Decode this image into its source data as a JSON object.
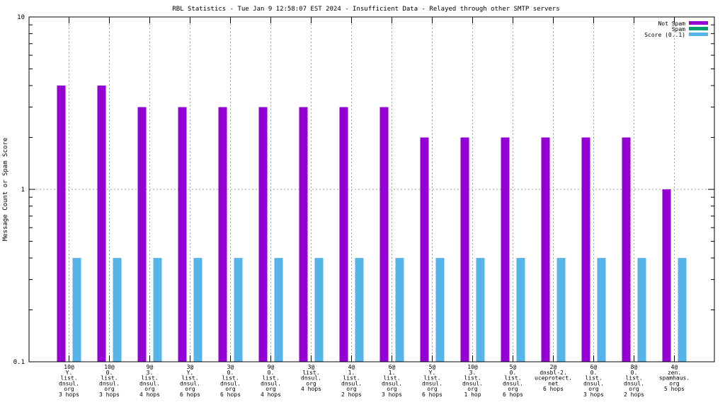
{
  "chart_data": {
    "type": "bar",
    "title": "RBL Statistics - Tue Jan  9 12:58:07 EST 2024 - Insufficient Data - Relayed through other SMTP servers",
    "ylabel": "Message Count or Spam Score",
    "xlabel": "",
    "yscale": "log",
    "ylim": [
      0.1,
      10
    ],
    "yticks": [
      "0.1",
      "1",
      "10"
    ],
    "grid": true,
    "legend_position": "top-right",
    "categories": [
      [
        "10@",
        "Y.",
        "list.",
        "dnsul.",
        "org",
        "3 hops"
      ],
      [
        "10@",
        "0.",
        "list.",
        "dnsul.",
        "org",
        "3 hops"
      ],
      [
        "9@",
        "3.",
        "list.",
        "dnsul.",
        "org",
        "4 hops"
      ],
      [
        "3@",
        "Y.",
        "list.",
        "dnsul.",
        "org",
        "6 hops"
      ],
      [
        "3@",
        "0.",
        "list.",
        "dnsul.",
        "org",
        "6 hops"
      ],
      [
        "9@",
        "0.",
        "list.",
        "dnsul.",
        "org",
        "4 hops"
      ],
      [
        "3@",
        "list.",
        "dnsul.",
        "org",
        "4 hops"
      ],
      [
        "4@",
        "1.",
        "list.",
        "dnsul.",
        "org",
        "2 hops"
      ],
      [
        "6@",
        "1.",
        "list.",
        "dnsul.",
        "org",
        "3 hops"
      ],
      [
        "5@",
        "Y.",
        "list.",
        "dnsul.",
        "org",
        "6 hops"
      ],
      [
        "10@",
        "3.",
        "list.",
        "dnsul.",
        "org",
        "1 hop"
      ],
      [
        "5@",
        "0.",
        "list.",
        "dnsul.",
        "org",
        "6 hops"
      ],
      [
        "2@",
        "dnsbl-2.",
        "uceprotect.",
        "net",
        "6 hops"
      ],
      [
        "6@",
        "0.",
        "list.",
        "dnsul.",
        "org",
        "3 hops"
      ],
      [
        "8@",
        "0.",
        "list.",
        "dnsul.",
        "org",
        "2 hops"
      ],
      [
        "4@",
        "zen.",
        "spamhaus.",
        "org",
        "5 hops"
      ]
    ],
    "series": [
      {
        "name": "Not Spam",
        "color": "#9400d3",
        "values": [
          4,
          4,
          3,
          3,
          3,
          3,
          3,
          3,
          3,
          2,
          2,
          2,
          2,
          2,
          2,
          1
        ]
      },
      {
        "name": "Spam",
        "color": "#009e73",
        "values": [
          0,
          0,
          0,
          0,
          0,
          0,
          0,
          0,
          0,
          0,
          0,
          0,
          0,
          0,
          0,
          0
        ]
      },
      {
        "name": "Score (0..1)",
        "color": "#56b4e9",
        "values": [
          0.4,
          0.4,
          0.4,
          0.4,
          0.4,
          0.4,
          0.4,
          0.4,
          0.4,
          0.4,
          0.4,
          0.4,
          0.4,
          0.4,
          0.4,
          0.4
        ]
      }
    ]
  }
}
